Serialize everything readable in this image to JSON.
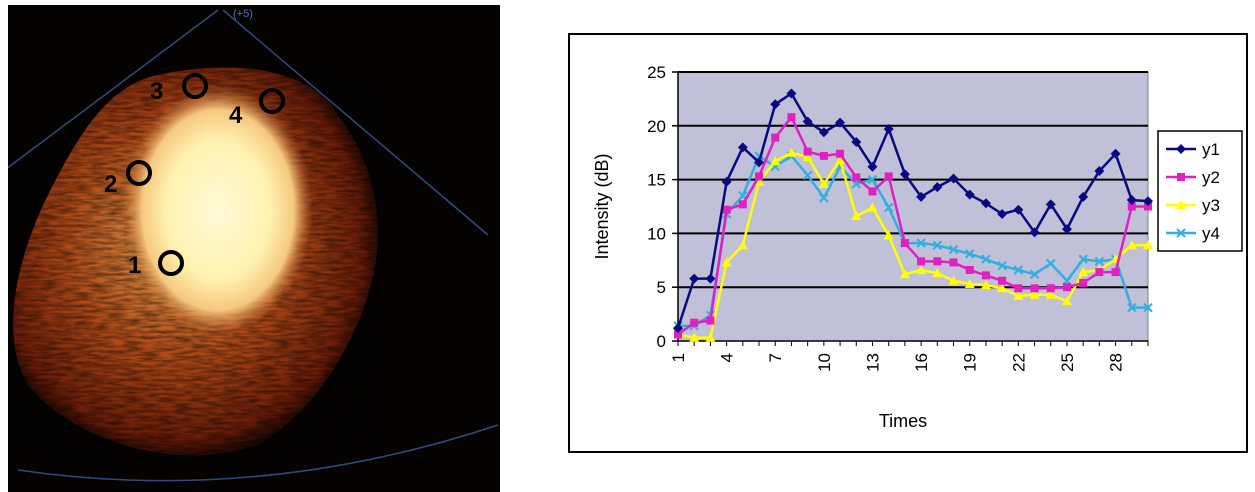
{
  "echo_image": {
    "roi_labels": [
      "1",
      "2",
      "3",
      "4"
    ],
    "top_text": "(+5)"
  },
  "chart_data": {
    "type": "line",
    "xlabel": "Times",
    "ylabel": "Intensity (dB)",
    "ylim": [
      0,
      25
    ],
    "yticks": [
      0,
      5,
      10,
      15,
      20,
      25
    ],
    "xlim": [
      1,
      30
    ],
    "xticks": [
      "1",
      "4",
      "7",
      "10",
      "13",
      "16",
      "19",
      "22",
      "25",
      "28"
    ],
    "x": [
      1,
      2,
      3,
      4,
      5,
      6,
      7,
      8,
      9,
      10,
      11,
      12,
      13,
      14,
      15,
      16,
      17,
      18,
      19,
      20,
      21,
      22,
      23,
      24,
      25,
      26,
      27,
      28,
      29,
      30
    ],
    "grid": true,
    "plot_background": "#c0c0d8",
    "legend_position": "right",
    "series": [
      {
        "name": "y1",
        "color": "#0a0a80",
        "marker": "diamond",
        "values": [
          1.2,
          5.8,
          5.8,
          14.8,
          18.0,
          16.6,
          22.0,
          23.0,
          20.4,
          19.4,
          20.3,
          18.5,
          16.2,
          19.7,
          15.5,
          13.4,
          14.3,
          15.1,
          13.6,
          12.8,
          11.8,
          12.2,
          10.1,
          12.7,
          10.4,
          13.4,
          15.8,
          17.4,
          13.1,
          13.0
        ]
      },
      {
        "name": "y2",
        "color": "#e020c0",
        "marker": "square",
        "values": [
          0.6,
          1.7,
          1.9,
          12.2,
          12.7,
          15.3,
          18.9,
          20.8,
          17.6,
          17.2,
          17.4,
          15.2,
          13.9,
          15.3,
          9.1,
          7.4,
          7.4,
          7.3,
          6.6,
          6.1,
          5.6,
          4.9,
          4.9,
          4.9,
          5.0,
          5.4,
          6.4,
          6.4,
          12.5,
          12.5
        ]
      },
      {
        "name": "y3",
        "color": "#ffff00",
        "marker": "triangle",
        "values": [
          0.6,
          0.3,
          0.3,
          7.3,
          8.9,
          14.8,
          16.7,
          17.5,
          17.1,
          14.6,
          16.8,
          11.6,
          12.4,
          9.8,
          6.2,
          6.6,
          6.3,
          5.6,
          5.3,
          5.2,
          4.9,
          4.2,
          4.3,
          4.3,
          3.7,
          6.4,
          6.6,
          7.6,
          8.9,
          8.9
        ]
      },
      {
        "name": "y4",
        "color": "#30b0e0",
        "marker": "x",
        "values": [
          1.4,
          1.4,
          2.4,
          11.8,
          13.5,
          17.2,
          16.2,
          17.2,
          15.4,
          13.3,
          16.2,
          14.6,
          15.0,
          12.4,
          9.1,
          9.1,
          8.9,
          8.5,
          8.1,
          7.6,
          7.0,
          6.6,
          6.2,
          7.2,
          5.6,
          7.6,
          7.4,
          7.6,
          3.1,
          3.1
        ]
      }
    ]
  }
}
